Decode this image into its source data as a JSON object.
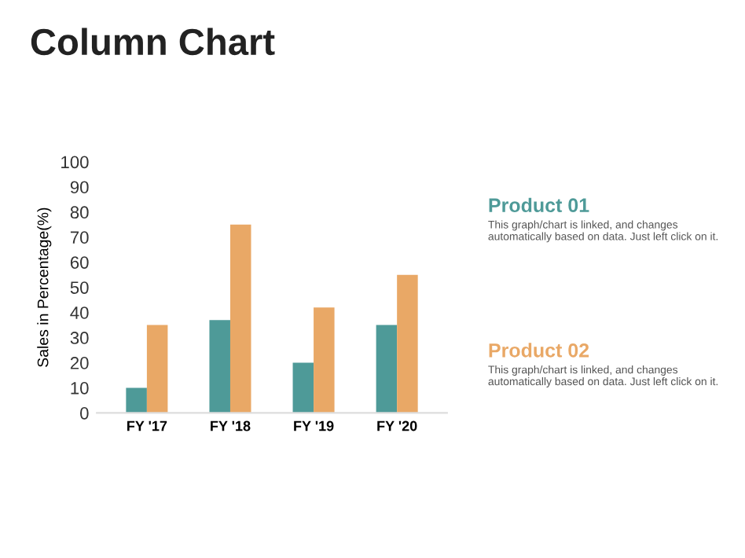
{
  "chart_data": {
    "type": "bar",
    "title": "Column Chart",
    "ylabel": "Sales in Percentage(%)",
    "categories": [
      "FY '17",
      "FY '18",
      "FY '19",
      "FY '20"
    ],
    "series": [
      {
        "name": "Product 01",
        "color": "#4e9a98",
        "values": [
          10,
          37,
          20,
          35
        ]
      },
      {
        "name": "Product 02",
        "color": "#e9a866",
        "values": [
          35,
          75,
          42,
          55
        ]
      }
    ],
    "ylim": [
      0,
      100
    ],
    "yticks": [
      0,
      10,
      20,
      30,
      40,
      50,
      60,
      70,
      80,
      90,
      100
    ],
    "grid": false,
    "annotations": [
      "This graph/chart is linked, and changes automatically based on data. Just left click on it.",
      "This graph/chart is linked, and changes automatically based on data. Just left click on it."
    ]
  }
}
